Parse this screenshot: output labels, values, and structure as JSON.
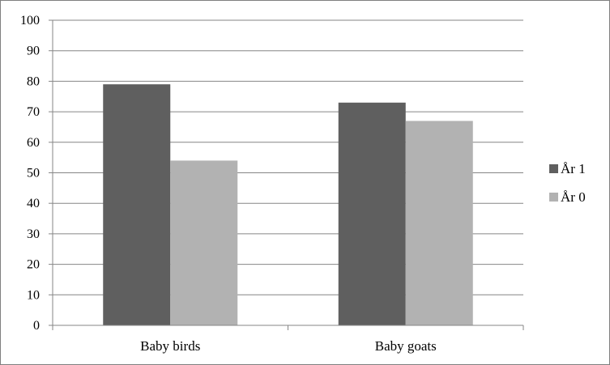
{
  "chart_data": {
    "type": "bar",
    "categories": [
      "Baby birds",
      "Baby goats"
    ],
    "series": [
      {
        "name": "År 1",
        "values": [
          79,
          73
        ],
        "color": "#5f5f5f"
      },
      {
        "name": "År 0",
        "values": [
          54,
          67
        ],
        "color": "#b2b2b2"
      }
    ],
    "yticks": [
      0,
      10,
      20,
      30,
      40,
      50,
      60,
      70,
      80,
      90,
      100
    ],
    "ylim": [
      0,
      100
    ],
    "grid": true,
    "legend": "right",
    "colors": {
      "gridline": "#868686",
      "axis": "#868686",
      "frame": "#7f7f7f"
    }
  }
}
